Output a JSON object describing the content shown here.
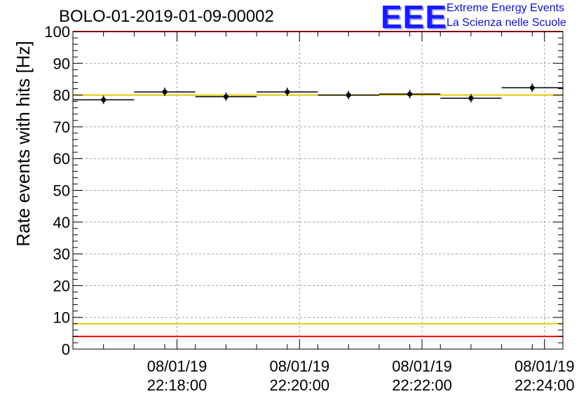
{
  "chart_data": {
    "type": "scatter",
    "title": "BOLO-01-2019-01-09-00002",
    "ylabel": "Rate events with hits [Hz]",
    "xlabel": "",
    "ylim": [
      0,
      100
    ],
    "y_ticks": [
      "0",
      "10",
      "20",
      "30",
      "40",
      "50",
      "60",
      "70",
      "80",
      "90",
      "100"
    ],
    "x_ticks": [
      {
        "date": "08/01/19",
        "time": "22:18:00"
      },
      {
        "date": "08/01/19",
        "time": "22:20:00"
      },
      {
        "date": "08/01/19",
        "time": "22:22:00"
      },
      {
        "date": "08/01/19",
        "time": "22:24:00"
      }
    ],
    "grid": true,
    "points": [
      {
        "x": "22:16:48",
        "y": 78.5
      },
      {
        "x": "22:17:48",
        "y": 81.0
      },
      {
        "x": "22:18:48",
        "y": 79.5
      },
      {
        "x": "22:19:48",
        "y": 81.0
      },
      {
        "x": "22:20:48",
        "y": 80.0
      },
      {
        "x": "22:21:48",
        "y": 80.3
      },
      {
        "x": "22:22:48",
        "y": 79.0
      },
      {
        "x": "22:23:48",
        "y": 82.3
      }
    ],
    "bin_width_seconds": 60,
    "reference_lines": [
      {
        "y": 100,
        "color": "#ff0000"
      },
      {
        "y": 80,
        "color": "#e8c800"
      },
      {
        "y": 8,
        "color": "#e8c800"
      },
      {
        "y": 4,
        "color": "#ff0000"
      }
    ]
  },
  "logo": {
    "mark": "EEE",
    "line1": "Extreme Energy Events",
    "line2": "La Scienza nelle Scuole"
  }
}
